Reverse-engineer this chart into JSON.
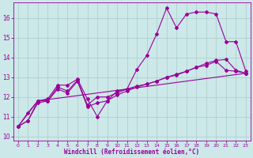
{
  "background_color": "#cce8e8",
  "line_color": "#990099",
  "grid_color": "#aacccc",
  "xlabel": "Windchill (Refroidissement éolien,°C)",
  "xlabel_color": "#990099",
  "tick_color": "#990099",
  "xlim": [
    -0.5,
    23.5
  ],
  "ylim": [
    9.8,
    16.8
  ],
  "yticks": [
    10,
    11,
    12,
    13,
    14,
    15,
    16
  ],
  "xticks": [
    0,
    1,
    2,
    3,
    4,
    5,
    6,
    7,
    8,
    9,
    10,
    11,
    12,
    13,
    14,
    15,
    16,
    17,
    18,
    19,
    20,
    21,
    22,
    23
  ],
  "series1_x": [
    0,
    1,
    2,
    3,
    4,
    5,
    6,
    7,
    8,
    9,
    10,
    11,
    12,
    13,
    14,
    15,
    16,
    17,
    18,
    19,
    20,
    21,
    22,
    23
  ],
  "series1_y": [
    10.5,
    11.2,
    11.8,
    11.9,
    12.6,
    12.6,
    12.9,
    11.9,
    11.0,
    11.8,
    12.3,
    12.4,
    13.4,
    14.1,
    15.2,
    16.5,
    15.5,
    16.2,
    16.3,
    16.3,
    16.2,
    14.8,
    14.8,
    13.3
  ],
  "series2_x": [
    0,
    1,
    2,
    3,
    4,
    5,
    6,
    7,
    8,
    9,
    10,
    11,
    12,
    13,
    14,
    15,
    16,
    17,
    18,
    19,
    20,
    21,
    22,
    23
  ],
  "series2_y": [
    10.5,
    10.8,
    11.8,
    11.8,
    12.5,
    12.3,
    12.85,
    11.6,
    12.0,
    12.0,
    12.2,
    12.4,
    12.55,
    12.65,
    12.8,
    13.0,
    13.15,
    13.3,
    13.5,
    13.7,
    13.85,
    13.9,
    13.35,
    13.2
  ],
  "series3_x": [
    0,
    1,
    2,
    3,
    4,
    5,
    6,
    7,
    8,
    9,
    10,
    11,
    12,
    13,
    14,
    15,
    16,
    17,
    18,
    19,
    20,
    21,
    22,
    23
  ],
  "series3_y": [
    10.5,
    10.8,
    11.7,
    11.8,
    12.4,
    12.2,
    12.8,
    11.5,
    11.7,
    11.8,
    12.1,
    12.3,
    12.5,
    12.65,
    12.8,
    13.0,
    13.1,
    13.3,
    13.5,
    13.6,
    13.8,
    13.35,
    13.3,
    13.2
  ],
  "series4_x": [
    0,
    2,
    23
  ],
  "series4_y": [
    10.5,
    11.8,
    13.2
  ],
  "marker": "D",
  "markersize": 2.0,
  "linewidth": 0.8
}
